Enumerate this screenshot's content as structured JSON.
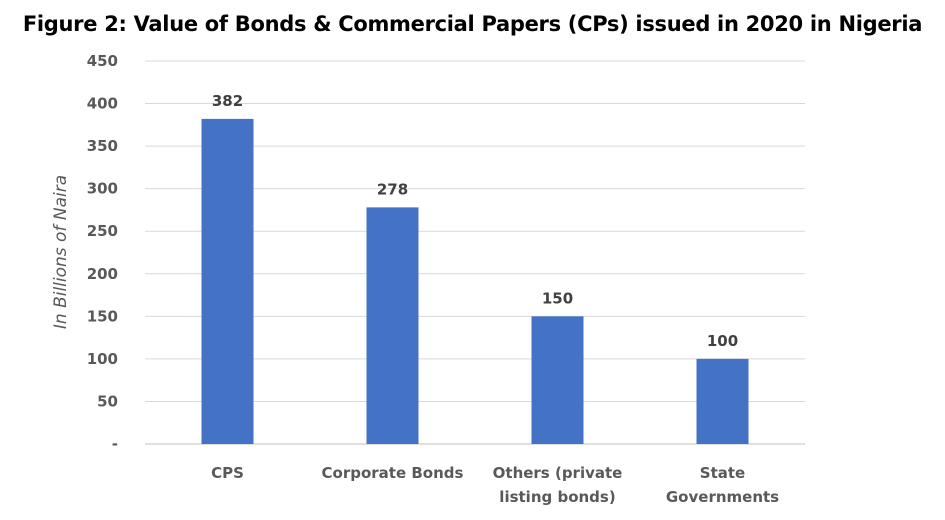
{
  "chart_data": {
    "type": "bar",
    "title": "Figure 2: Value of Bonds & Commercial Papers (CPs) issued in 2020 in Nigeria",
    "xlabel": "",
    "ylabel": "In Billions of Naira",
    "categories": [
      [
        "CPS"
      ],
      [
        "Corporate Bonds"
      ],
      [
        "Others (private",
        "listing bonds)"
      ],
      [
        "State",
        "Governments"
      ]
    ],
    "values": [
      382,
      278,
      150,
      100
    ],
    "data_labels": [
      "382",
      "278",
      "150",
      "100"
    ],
    "ylim": [
      0,
      450
    ],
    "yticks": [
      0,
      50,
      100,
      150,
      200,
      250,
      300,
      350,
      400,
      450
    ],
    "ytick_labels": [
      "-",
      "50",
      "100",
      "150",
      "200",
      "250",
      "300",
      "350",
      "400",
      "450"
    ],
    "grid": true,
    "bar_color": "#4472C4"
  }
}
